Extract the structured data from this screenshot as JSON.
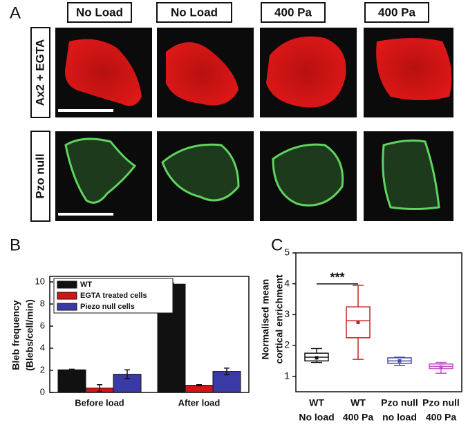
{
  "panel_labels": [
    "A",
    "B",
    "C"
  ],
  "panel_a": {
    "column_labels": [
      "No Load",
      "No Load",
      "400 Pa",
      "400 Pa"
    ],
    "row_labels": [
      "Ax2 + EGTA",
      "Pzo null"
    ]
  },
  "chart_data": [
    {
      "type": "bar",
      "ylabel": [
        "Bleb frequency",
        "(Blebs/cell/min)"
      ],
      "categories": [
        "Before load",
        "After load"
      ],
      "series": [
        {
          "name": "WT",
          "color": "#111111",
          "values": [
            2.05,
            9.8
          ],
          "errors": [
            0.05,
            0.08
          ]
        },
        {
          "name": "EGTA treated cells",
          "color": "#d41414",
          "values": [
            0.4,
            0.65
          ],
          "errors": [
            0.3,
            0.05
          ]
        },
        {
          "name": "Piezo null cells",
          "color": "#3a3aa6",
          "values": [
            1.65,
            1.9
          ],
          "errors": [
            0.4,
            0.3
          ]
        }
      ],
      "ylim": [
        0,
        10.5
      ],
      "yticks": [
        0,
        2,
        4,
        6,
        8,
        10
      ],
      "legend": "top-left"
    },
    {
      "type": "box",
      "ylabel": [
        "Normalised mean",
        "cortical enrichment"
      ],
      "categories": [
        [
          "WT",
          "No load"
        ],
        [
          "WT",
          "400 Pa"
        ],
        [
          "Pzo null",
          "no load"
        ],
        [
          "Pzo null",
          "400 Pa"
        ]
      ],
      "boxes": [
        {
          "color": "#111111",
          "min": 1.45,
          "q1": 1.5,
          "median": 1.62,
          "q3": 1.75,
          "max": 1.9,
          "mean": 1.6
        },
        {
          "color": "#cc1f1f",
          "min": 1.55,
          "q1": 2.25,
          "median": 2.8,
          "q3": 3.25,
          "max": 3.95,
          "mean": 2.75
        },
        {
          "color": "#4a4ab0",
          "min": 1.35,
          "q1": 1.42,
          "median": 1.5,
          "q3": 1.6,
          "max": 1.62,
          "mean": 1.5
        },
        {
          "color": "#c050c0",
          "min": 1.1,
          "q1": 1.25,
          "median": 1.32,
          "q3": 1.4,
          "max": 1.45,
          "mean": 1.3
        }
      ],
      "significance": "***",
      "ylim": [
        0.5,
        5
      ],
      "yticks": [
        1,
        2,
        3,
        4,
        5
      ]
    }
  ]
}
